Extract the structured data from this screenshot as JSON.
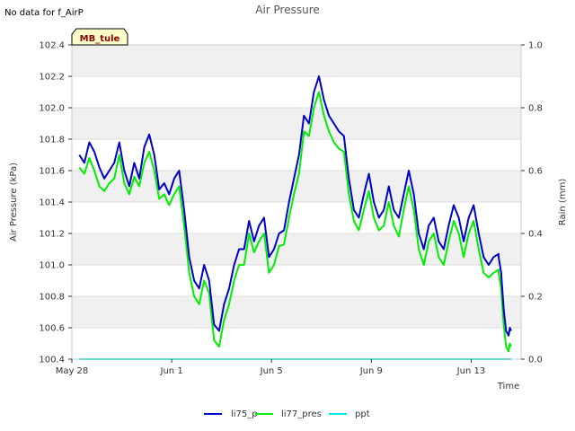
{
  "note": "No data for f_AirP",
  "badge": "MB_tule",
  "chart_data": {
    "type": "line",
    "title": "Air Pressure",
    "xlabel": "Time",
    "ylabel": "Air Pressure (kPa)",
    "y2label": "Rain (mm)",
    "ylim": [
      100.4,
      102.4
    ],
    "y2lim": [
      0.0,
      1.0
    ],
    "xlim": [
      0,
      18
    ],
    "x_ticks": [
      {
        "x": 0,
        "label": "May 28"
      },
      {
        "x": 4,
        "label": "Jun 1"
      },
      {
        "x": 8,
        "label": "Jun 5"
      },
      {
        "x": 12,
        "label": "Jun 9"
      },
      {
        "x": 16,
        "label": "Jun 13"
      }
    ],
    "y_ticks": [
      "100.4",
      "100.6",
      "100.8",
      "101.0",
      "101.2",
      "101.4",
      "101.6",
      "101.8",
      "102.0",
      "102.2",
      "102.4"
    ],
    "y2_ticks": [
      "0.0",
      "0.2",
      "0.4",
      "0.6",
      "0.8",
      "1.0"
    ],
    "colors": {
      "li75_p": "#0000cc",
      "li77_pres": "#00ee00",
      "ppt": "#00e5e5",
      "band": "#f0f0f0",
      "grid": "#dddddd"
    },
    "series": [
      {
        "name": "li75_p",
        "x": [
          0.3,
          0.5,
          0.7,
          0.9,
          1.1,
          1.3,
          1.5,
          1.7,
          1.9,
          2.1,
          2.3,
          2.5,
          2.7,
          2.9,
          3.1,
          3.3,
          3.5,
          3.7,
          3.9,
          4.1,
          4.3,
          4.5,
          4.7,
          4.9,
          5.1,
          5.3,
          5.5,
          5.7,
          5.9,
          6.1,
          6.3,
          6.5,
          6.7,
          6.9,
          7.1,
          7.3,
          7.5,
          7.7,
          7.9,
          8.1,
          8.3,
          8.5,
          8.7,
          8.9,
          9.1,
          9.3,
          9.5,
          9.7,
          9.9,
          10.1,
          10.3,
          10.5,
          10.7,
          10.9,
          11.1,
          11.3,
          11.5,
          11.7,
          11.9,
          12.1,
          12.3,
          12.5,
          12.7,
          12.9,
          13.1,
          13.3,
          13.5,
          13.7,
          13.9,
          14.1,
          14.3,
          14.5,
          14.7,
          14.9,
          15.1,
          15.3,
          15.5,
          15.7,
          15.9,
          16.1,
          16.3,
          16.5,
          16.7,
          16.9,
          17.1
        ],
        "values": [
          101.7,
          101.65,
          101.78,
          101.72,
          101.62,
          101.55,
          101.6,
          101.65,
          101.78,
          101.6,
          101.5,
          101.65,
          101.55,
          101.75,
          101.83,
          101.7,
          101.48,
          101.52,
          101.45,
          101.55,
          101.6,
          101.35,
          101.05,
          100.9,
          100.85,
          101.0,
          100.9,
          100.62,
          100.58,
          100.75,
          100.85,
          101.0,
          101.1,
          101.1,
          101.28,
          101.15,
          101.25,
          101.3,
          101.05,
          101.1,
          101.2,
          101.22,
          101.4,
          101.55,
          101.7,
          101.95,
          101.9,
          102.1,
          102.2,
          102.05,
          101.95,
          101.9,
          101.85,
          101.82,
          101.55,
          101.35,
          101.3,
          101.45,
          101.58,
          101.4,
          101.3,
          101.35,
          101.5,
          101.35,
          101.3,
          101.45,
          101.6,
          101.45,
          101.2,
          101.1,
          101.25,
          101.3,
          101.15,
          101.1,
          101.25,
          101.38,
          101.3,
          101.15,
          101.3,
          101.38,
          101.2,
          101.05,
          101.0,
          101.05,
          101.07
        ],
        "tail": [
          [
            17.1,
            101.05
          ],
          [
            17.2,
            100.95
          ],
          [
            17.3,
            100.72
          ],
          [
            17.4,
            100.58
          ],
          [
            17.5,
            100.55
          ],
          [
            17.55,
            100.6
          ],
          [
            17.6,
            100.58
          ]
        ]
      },
      {
        "name": "li77_pres",
        "x": [
          0.3,
          0.5,
          0.7,
          0.9,
          1.1,
          1.3,
          1.5,
          1.7,
          1.9,
          2.1,
          2.3,
          2.5,
          2.7,
          2.9,
          3.1,
          3.3,
          3.5,
          3.7,
          3.9,
          4.1,
          4.3,
          4.5,
          4.7,
          4.9,
          5.1,
          5.3,
          5.5,
          5.7,
          5.9,
          6.1,
          6.3,
          6.5,
          6.7,
          6.9,
          7.1,
          7.3,
          7.5,
          7.7,
          7.9,
          8.1,
          8.3,
          8.5,
          8.7,
          8.9,
          9.1,
          9.3,
          9.5,
          9.7,
          9.9,
          10.1,
          10.3,
          10.5,
          10.7,
          10.9,
          11.1,
          11.3,
          11.5,
          11.7,
          11.9,
          12.1,
          12.3,
          12.5,
          12.7,
          12.9,
          13.1,
          13.3,
          13.5,
          13.7,
          13.9,
          14.1,
          14.3,
          14.5,
          14.7,
          14.9,
          15.1,
          15.3,
          15.5,
          15.7,
          15.9,
          16.1,
          16.3,
          16.5,
          16.7,
          16.9,
          17.1
        ],
        "values": [
          101.62,
          101.58,
          101.68,
          101.6,
          101.5,
          101.47,
          101.52,
          101.55,
          101.7,
          101.52,
          101.45,
          101.56,
          101.5,
          101.65,
          101.72,
          101.6,
          101.42,
          101.45,
          101.38,
          101.45,
          101.5,
          101.25,
          100.95,
          100.8,
          100.75,
          100.9,
          100.82,
          100.52,
          100.48,
          100.65,
          100.75,
          100.9,
          101.0,
          101.0,
          101.2,
          101.08,
          101.15,
          101.2,
          100.95,
          101.0,
          101.12,
          101.13,
          101.3,
          101.45,
          101.58,
          101.85,
          101.82,
          102.0,
          102.1,
          101.95,
          101.85,
          101.78,
          101.74,
          101.72,
          101.45,
          101.28,
          101.22,
          101.35,
          101.47,
          101.3,
          101.22,
          101.25,
          101.4,
          101.25,
          101.18,
          101.35,
          101.5,
          101.35,
          101.1,
          101.0,
          101.15,
          101.2,
          101.05,
          101.0,
          101.15,
          101.28,
          101.2,
          101.05,
          101.2,
          101.28,
          101.1,
          100.95,
          100.92,
          100.95,
          100.97
        ],
        "tail": [
          [
            17.1,
            100.95
          ],
          [
            17.2,
            100.85
          ],
          [
            17.3,
            100.62
          ],
          [
            17.4,
            100.48
          ],
          [
            17.5,
            100.45
          ],
          [
            17.55,
            100.5
          ],
          [
            17.6,
            100.48
          ]
        ]
      },
      {
        "name": "ppt",
        "axis": "right",
        "x": [
          0.3,
          17.6
        ],
        "values": [
          0.0,
          0.0
        ]
      }
    ],
    "legend": [
      {
        "name": "li75_p",
        "color": "#0000cc"
      },
      {
        "name": "li77_pres",
        "color": "#00ee00"
      },
      {
        "name": "ppt",
        "color": "#00e5e5"
      }
    ],
    "legend_position": "bottom-center",
    "grid": true
  }
}
